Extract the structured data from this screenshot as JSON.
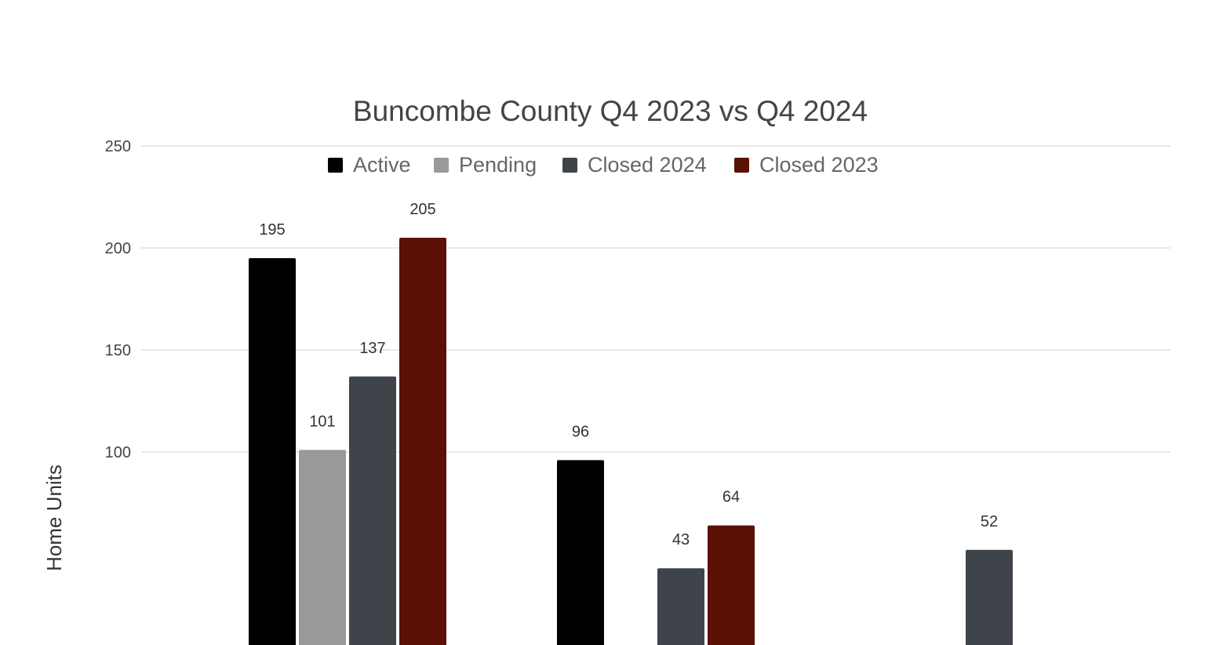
{
  "chart_data": {
    "type": "bar",
    "title": "Buncombe County Q4 2023 vs Q4 2024",
    "ylabel": "Home Units",
    "xlabel": "",
    "ylim": [
      0,
      250
    ],
    "yticks": [
      100,
      150,
      200,
      250
    ],
    "grid": true,
    "legend_position": "top",
    "categories": [
      "",
      "",
      ""
    ],
    "series": [
      {
        "name": "Active",
        "color": "#000000",
        "values": [
          195,
          96,
          null
        ]
      },
      {
        "name": "Pending",
        "color": "#999999",
        "values": [
          101,
          null,
          null
        ]
      },
      {
        "name": "Closed 2024",
        "color": "#3f444b",
        "values": [
          137,
          43,
          52
        ]
      },
      {
        "name": "Closed 2023",
        "color": "#5a1004",
        "values": [
          205,
          64,
          null
        ]
      }
    ]
  }
}
